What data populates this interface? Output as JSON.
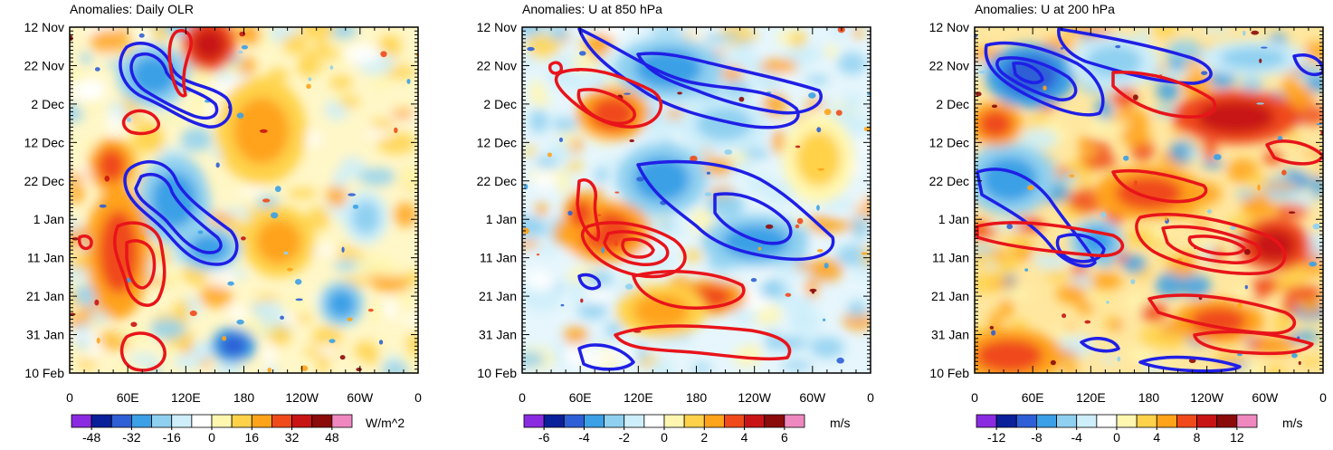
{
  "chart_data": [
    {
      "type": "heatmap",
      "title": "Anomalies: Daily OLR",
      "xlabel": "",
      "ylabel": "",
      "x_ticks": [
        "0",
        "60E",
        "120E",
        "180",
        "120W",
        "60W",
        "0"
      ],
      "y_ticks": [
        "12 Nov",
        "22 Nov",
        "2 Dec",
        "12 Dec",
        "22 Dec",
        "1 Jan",
        "11 Jan",
        "21 Jan",
        "31 Jan",
        "10 Feb"
      ],
      "xlim": [
        0,
        360
      ],
      "colorbar": {
        "unit": "W/m^2",
        "labels": [
          "-48",
          "-32",
          "-16",
          "0",
          "16",
          "32",
          "48"
        ],
        "range": [
          -56,
          56
        ]
      },
      "contours": {
        "positive_color": "#e8141a",
        "negative_color": "#1f1fe6"
      }
    },
    {
      "type": "heatmap",
      "title": "Anomalies: U at 850 hPa",
      "xlabel": "",
      "ylabel": "",
      "x_ticks": [
        "0",
        "60E",
        "120E",
        "180",
        "120W",
        "60W",
        "0"
      ],
      "y_ticks": [
        "12 Nov",
        "22 Nov",
        "2 Dec",
        "12 Dec",
        "22 Dec",
        "1 Jan",
        "11 Jan",
        "21 Jan",
        "31 Jan",
        "10 Feb"
      ],
      "xlim": [
        0,
        360
      ],
      "colorbar": {
        "unit": "m/s",
        "labels": [
          "-6",
          "-4",
          "-2",
          "0",
          "2",
          "4",
          "6"
        ],
        "range": [
          -7,
          7
        ]
      },
      "contours": {
        "positive_color": "#e8141a",
        "negative_color": "#1f1fe6"
      }
    },
    {
      "type": "heatmap",
      "title": "Anomalies: U at 200 hPa",
      "xlabel": "",
      "ylabel": "",
      "x_ticks": [
        "0",
        "60E",
        "120E",
        "180",
        "120W",
        "60W",
        "0"
      ],
      "y_ticks": [
        "12 Nov",
        "22 Nov",
        "2 Dec",
        "12 Dec",
        "22 Dec",
        "1 Jan",
        "11 Jan",
        "21 Jan",
        "31 Jan",
        "10 Feb"
      ],
      "xlim": [
        0,
        360
      ],
      "colorbar": {
        "unit": "m/s",
        "labels": [
          "-12",
          "-8",
          "-4",
          "0",
          "4",
          "8",
          "12"
        ],
        "range": [
          -14,
          14
        ]
      },
      "contours": {
        "positive_color": "#e8141a",
        "negative_color": "#1f1fe6"
      }
    }
  ],
  "palette": [
    "#8a2be2",
    "#0a1f9a",
    "#2f5fd6",
    "#3ba0e6",
    "#8fd0f0",
    "#cdeefa",
    "#ffffff",
    "#fff7b0",
    "#ffd24a",
    "#ffa31a",
    "#f04a1a",
    "#c81414",
    "#8b0a0a",
    "#f088c0"
  ]
}
